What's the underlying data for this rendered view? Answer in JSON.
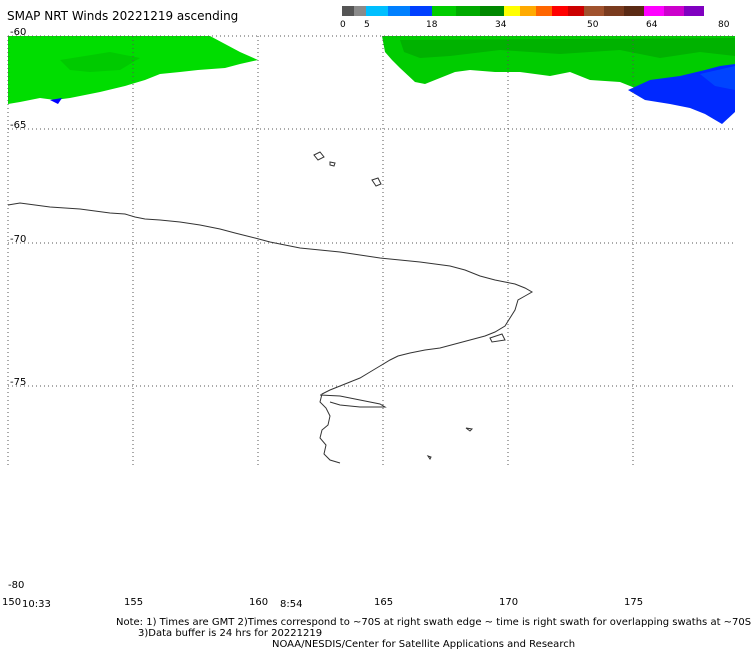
{
  "title": "SMAP NRT Winds 20221219 ascending",
  "colorbar": {
    "segments": [
      {
        "color": "#555555"
      },
      {
        "color": "#8a8a8a"
      },
      {
        "color": "#00bfff"
      },
      {
        "color": "#0080ff"
      },
      {
        "color": "#0040ff"
      },
      {
        "color": "#00cc00"
      },
      {
        "color": "#00aa00"
      },
      {
        "color": "#008800"
      },
      {
        "color": "#ffff00"
      },
      {
        "color": "#ffaa00"
      },
      {
        "color": "#ff6600"
      },
      {
        "color": "#ff0000"
      },
      {
        "color": "#cc0000"
      },
      {
        "color": "#a0522d"
      },
      {
        "color": "#7a3b1e"
      },
      {
        "color": "#5a2a14"
      },
      {
        "color": "#ff00ff"
      },
      {
        "color": "#cc00cc"
      },
      {
        "color": "#8000c0"
      }
    ],
    "labels": [
      "0",
      "5",
      "18",
      "34",
      "50",
      "64",
      "80"
    ]
  },
  "axes": {
    "lat_labels": [
      "-60",
      "-65",
      "-70",
      "-75",
      "-80"
    ],
    "lon_labels": [
      "150",
      "155",
      "160",
      "165",
      "170",
      "175"
    ]
  },
  "swath_times": [
    "10:33",
    "8:54"
  ],
  "notes": [
    "Note: 1) Times are GMT 2)Times correspond to ~70S at right swath edge ~ time is right swath for overlapping swaths at ~70S",
    "3)Data buffer is 24 hrs for 20221219",
    "NOAA/NESDIS/Center for Satellite Applications and Research"
  ]
}
